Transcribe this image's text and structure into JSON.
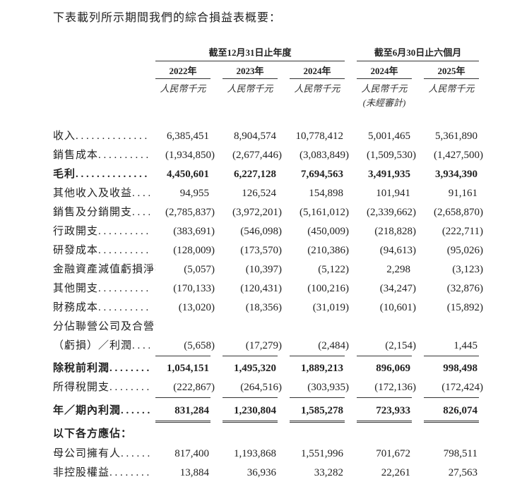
{
  "intro": "下表載列所示期間我們的綜合損益表概要：",
  "header": {
    "group_year": "截至12月31日止年度",
    "group_half": "截至6月30日止六個月",
    "years": [
      "2022年",
      "2023年",
      "2024年",
      "2024年",
      "2025年"
    ],
    "unit": "人民幣千元",
    "unaudited": "(未經審計)"
  },
  "rows": [
    {
      "label": "收入",
      "values": [
        "6,385,451",
        "8,904,574",
        "10,778,412",
        "5,001,465",
        "5,361,890"
      ]
    },
    {
      "label": "銷售成本",
      "values": [
        "(1,934,850)",
        "(2,677,446)",
        "(3,083,849)",
        "(1,509,530)",
        "(1,427,500)"
      ]
    },
    {
      "label": "毛利",
      "bold": true,
      "values": [
        "4,450,601",
        "6,227,128",
        "7,694,563",
        "3,491,935",
        "3,934,390"
      ]
    },
    {
      "label": "其他收入及收益",
      "values": [
        "94,955",
        "126,524",
        "154,898",
        "101,941",
        "91,161"
      ]
    },
    {
      "label": "銷售及分銷開支",
      "values": [
        "(2,785,837)",
        "(3,972,201)",
        "(5,161,012)",
        "(2,339,662)",
        "(2,658,870)"
      ]
    },
    {
      "label": "行政開支",
      "values": [
        "(383,691)",
        "(546,098)",
        "(450,009)",
        "(218,828)",
        "(222,711)"
      ]
    },
    {
      "label": "研發成本",
      "values": [
        "(128,009)",
        "(173,570)",
        "(210,386)",
        "(94,613)",
        "(95,026)"
      ]
    },
    {
      "label": "金融資產減值虧損淨額",
      "values": [
        "(5,057)",
        "(10,397)",
        "(5,122)",
        "2,298",
        "(3,123)"
      ]
    },
    {
      "label": "其他開支",
      "values": [
        "(170,133)",
        "(120,431)",
        "(100,216)",
        "(34,247)",
        "(32,876)"
      ]
    },
    {
      "label": "財務成本",
      "values": [
        "(13,020)",
        "(18,356)",
        "(31,019)",
        "(10,601)",
        "(15,892)"
      ]
    },
    {
      "label": "分佔聯營公司及合營企業",
      "nodots": true,
      "values": [
        "",
        "",
        "",
        "",
        ""
      ]
    },
    {
      "label": "（虧損）／利潤",
      "underline": "single",
      "values": [
        "(5,658)",
        "(17,279)",
        "(2,484)",
        "(2,154)",
        "1,445"
      ]
    },
    {
      "label": "除稅前利潤",
      "bold": true,
      "values": [
        "1,054,151",
        "1,495,320",
        "1,889,213",
        "896,069",
        "998,498"
      ]
    },
    {
      "label": "所得稅開支",
      "underline": "single",
      "values": [
        "(222,867)",
        "(264,516)",
        "(303,935)",
        "(172,136)",
        "(172,424)"
      ]
    },
    {
      "label": "年／期內利潤",
      "bold": true,
      "underline": "double",
      "values": [
        "831,284",
        "1,230,804",
        "1,585,278",
        "723,933",
        "826,074"
      ]
    },
    {
      "label": "以下各方應佔：",
      "bold": true,
      "nodots": true,
      "values": [
        "",
        "",
        "",
        "",
        ""
      ]
    },
    {
      "label": "母公司擁有人",
      "values": [
        "817,400",
        "1,193,868",
        "1,551,996",
        "701,672",
        "798,511"
      ]
    },
    {
      "label": "非控股權益",
      "values": [
        "13,884",
        "36,936",
        "33,282",
        "22,261",
        "27,563"
      ]
    }
  ]
}
